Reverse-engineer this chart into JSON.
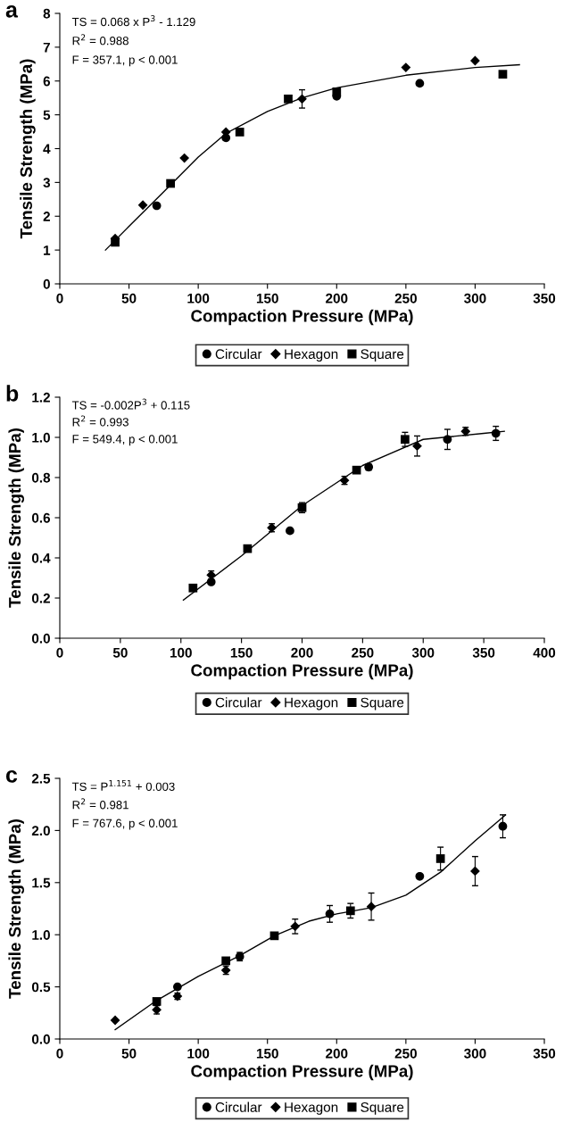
{
  "chart_data": [
    {
      "type": "scatter",
      "xlabel": "Compaction Pressure (MPa)",
      "ylabel": "Tensile Strength (MPa)",
      "xlim": [
        0,
        350
      ],
      "ylim": [
        0,
        8
      ],
      "xticks": [
        0,
        50,
        100,
        150,
        200,
        250,
        300,
        350
      ],
      "yticks": [
        0,
        1,
        2,
        3,
        4,
        5,
        6,
        7,
        8
      ],
      "grid": false,
      "legend": "bottom",
      "annotations": [
        "a",
        "TS = 0.068 x P$^{3}$ - 1.129",
        "R$^{2}$ = 0.988",
        "F = 357.1, p < 0.001"
      ],
      "series": [
        {
          "name": "Circular",
          "color": "#000000",
          "marker": "circle",
          "x": [
            70,
            120,
            200,
            260
          ],
          "values": [
            2.31,
            4.32,
            5.55,
            5.93
          ]
        },
        {
          "name": "Hexagon",
          "color": "#000000",
          "marker": "diamond",
          "x": [
            40,
            60,
            90,
            120,
            175,
            250,
            300
          ],
          "values": [
            1.34,
            2.33,
            3.72,
            4.49,
            5.47,
            6.4,
            6.6
          ],
          "errors": [
            null,
            null,
            null,
            null,
            0.27,
            null,
            null
          ]
        },
        {
          "name": "Square",
          "color": "#000000",
          "marker": "square",
          "x": [
            40,
            80,
            130,
            165,
            200,
            320
          ],
          "values": [
            1.23,
            2.97,
            4.49,
            5.47,
            5.68,
            6.2
          ]
        },
        {
          "type": "line",
          "color": "#000000",
          "marker": "none",
          "line_style": "solid",
          "x": [
            33,
            50,
            75,
            100,
            120,
            150,
            175,
            200,
            250,
            300,
            332
          ],
          "values": [
            1.0,
            1.7,
            2.72,
            3.75,
            4.45,
            5.1,
            5.5,
            5.8,
            6.17,
            6.4,
            6.48
          ]
        }
      ]
    },
    {
      "type": "scatter",
      "xlabel": "Compaction Pressure (MPa)",
      "ylabel": "Tensile Strength (MPa)",
      "xlim": [
        0,
        400
      ],
      "ylim": [
        0,
        1.2
      ],
      "xticks": [
        0,
        50,
        100,
        150,
        200,
        250,
        300,
        350,
        400
      ],
      "yticks": [
        {
          "value": 0,
          "label": "0.0"
        },
        {
          "value": 0.2,
          "label": "0.2"
        },
        {
          "value": 0.4,
          "label": "0.4"
        },
        {
          "value": 0.6,
          "label": "0.6"
        },
        {
          "value": 0.8,
          "label": "0.8"
        },
        {
          "value": 1.0,
          "label": "1.0"
        },
        {
          "value": 1.2,
          "label": "1.2"
        }
      ],
      "grid": false,
      "legend": "bottom",
      "annotations": [
        "b",
        "TS = -0.002P$^{3}$ + 0.115",
        "R$^{2}$ = 0.993",
        "F = 549.4, p < 0.001"
      ],
      "series": [
        {
          "name": "Circular",
          "color": "#000000",
          "marker": "circle",
          "x": [
            125,
            190,
            255,
            320,
            360
          ],
          "values": [
            0.28,
            0.535,
            0.852,
            0.99,
            1.02
          ],
          "errors": [
            null,
            null,
            0.015,
            0.05,
            0.035
          ]
        },
        {
          "name": "Hexagon",
          "color": "#000000",
          "marker": "diamond",
          "x": [
            125,
            175,
            235,
            295,
            335
          ],
          "values": [
            0.315,
            0.55,
            0.786,
            0.957,
            1.03
          ],
          "errors": [
            0.02,
            0.02,
            0.02,
            0.05,
            0.02
          ]
        },
        {
          "name": "Square",
          "color": "#000000",
          "marker": "square",
          "x": [
            110,
            155,
            200,
            245,
            285
          ],
          "values": [
            0.25,
            0.446,
            0.65,
            0.837,
            0.99
          ],
          "errors": [
            null,
            null,
            0.025,
            0.015,
            0.035
          ]
        },
        {
          "type": "line",
          "color": "#000000",
          "marker": "none",
          "line_style": "solid",
          "x": [
            102,
            150,
            200,
            250,
            300,
            350,
            367
          ],
          "values": [
            0.19,
            0.41,
            0.66,
            0.86,
            0.99,
            1.02,
            1.03
          ]
        }
      ]
    },
    {
      "type": "scatter",
      "xlabel": "Compaction Pressure (MPa)",
      "ylabel": "Tensile Strength (MPa)",
      "xlim": [
        0,
        350
      ],
      "ylim": [
        0,
        2.5
      ],
      "xticks": [
        0,
        50,
        100,
        150,
        200,
        250,
        300,
        350
      ],
      "yticks": [
        {
          "value": 0,
          "label": "0.0"
        },
        {
          "value": 0.5,
          "label": "0.5"
        },
        {
          "value": 1.0,
          "label": "1.0"
        },
        {
          "value": 1.5,
          "label": "1.5"
        },
        {
          "value": 2.0,
          "label": "2.0"
        },
        {
          "value": 2.5,
          "label": "2.5"
        }
      ],
      "grid": false,
      "legend": "bottom",
      "annotations": [
        "c",
        "TS = P$^{1.151}$ + 0.003",
        "R$^{2}$ = 0.981",
        "F = 767.6, p < 0.001"
      ],
      "series": [
        {
          "name": "Circular",
          "color": "#000000",
          "marker": "circle",
          "x": [
            85,
            130,
            195,
            260,
            320
          ],
          "values": [
            0.5,
            0.79,
            1.2,
            1.56,
            2.04
          ],
          "errors": [
            null,
            0.04,
            0.08,
            null,
            0.11
          ]
        },
        {
          "name": "Hexagon",
          "color": "#000000",
          "marker": "diamond",
          "x": [
            40,
            70,
            85,
            120,
            170,
            225,
            300
          ],
          "values": [
            0.18,
            0.28,
            0.41,
            0.66,
            1.08,
            1.27,
            1.61
          ],
          "errors": [
            null,
            0.04,
            0.03,
            0.04,
            0.07,
            0.13,
            0.14
          ]
        },
        {
          "name": "Square",
          "color": "#000000",
          "marker": "square",
          "x": [
            70,
            120,
            155,
            210,
            275
          ],
          "values": [
            0.36,
            0.75,
            0.99,
            1.23,
            1.73
          ],
          "errors": [
            null,
            null,
            0.02,
            0.07,
            0.11
          ]
        },
        {
          "type": "line",
          "color": "#000000",
          "marker": "none",
          "line_style": "solid",
          "x": [
            40,
            70,
            100,
            130,
            155,
            180,
            200,
            225,
            250,
            275,
            300,
            322
          ],
          "values": [
            0.09,
            0.37,
            0.6,
            0.8,
            0.99,
            1.13,
            1.2,
            1.26,
            1.38,
            1.6,
            1.9,
            2.15
          ]
        }
      ]
    }
  ]
}
